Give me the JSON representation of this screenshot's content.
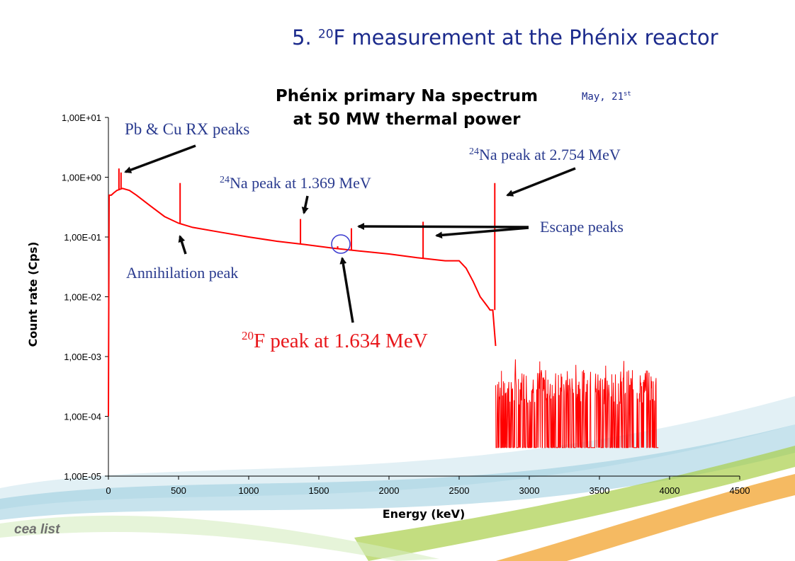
{
  "slide": {
    "title_prefix": "5. ",
    "title_sup": "20",
    "title_rest": "F measurement at the Phénix reactor",
    "date_main": "May, 21",
    "date_sup": "st",
    "logo_text": "cea list"
  },
  "colors": {
    "title": "#1b2a8c",
    "spectrum": "#ff0000",
    "arrows": "#0a0a0a",
    "annotation_blue": "#2a3b8f",
    "annotation_red": "#e8171b",
    "circle": "#3a3ad0"
  },
  "chart_data": {
    "type": "line",
    "title_line1": "Phénix primary Na spectrum",
    "title_line2": "at 50 MW thermal power",
    "xlabel": "Energy (keV)",
    "ylabel": "Count rate (Cps)",
    "xlim": [
      0,
      4500
    ],
    "ylim": [
      1e-05,
      10
    ],
    "yscale": "log",
    "grid": false,
    "legend": "none",
    "xticks": [
      "0",
      "500",
      "1000",
      "1500",
      "2000",
      "2500",
      "3000",
      "3500",
      "4000",
      "4500"
    ],
    "yticks": [
      "1,00E-05",
      "1,00E-04",
      "1,00E-03",
      "1,00E-02",
      "1,00E-01",
      "1,00E+00",
      "1,00E+01"
    ],
    "series": [
      {
        "color": "#ff0000",
        "continuum": {
          "x": [
            0,
            5,
            15,
            20,
            40,
            60,
            100,
            150,
            200,
            300,
            400,
            500,
            600,
            800,
            1000,
            1200,
            1400,
            1600,
            1800,
            2000,
            2200,
            2400,
            2500,
            2550,
            2600,
            2650,
            2700,
            2720,
            2740,
            2760
          ],
          "y": [
            0.0001,
            0.5,
            0.5,
            0.5,
            0.55,
            0.6,
            0.65,
            0.6,
            0.5,
            0.33,
            0.22,
            0.17,
            0.145,
            0.12,
            0.1,
            0.085,
            0.075,
            0.065,
            0.058,
            0.052,
            0.045,
            0.04,
            0.04,
            0.03,
            0.018,
            0.01,
            0.007,
            0.006,
            0.006,
            0.0015
          ]
        },
        "peaks": [
          {
            "x": 75,
            "y": 1.4
          },
          {
            "x": 90,
            "y": 1.2
          },
          {
            "x": 511,
            "y": 0.8
          },
          {
            "x": 1369,
            "y": 0.2
          },
          {
            "x": 1634,
            "y": 0.07
          },
          {
            "x": 1732,
            "y": 0.14
          },
          {
            "x": 2243,
            "y": 0.18
          },
          {
            "x": 2754,
            "y": 0.8
          }
        ],
        "tail": {
          "x_range": [
            2760,
            3920
          ],
          "y_range": [
            3e-05,
            0.0006
          ]
        }
      }
    ],
    "annotations": [
      {
        "text": "Pb & Cu RX peaks",
        "target": "75 keV"
      },
      {
        "sup": "24",
        "text": "Na peak at 1.369 MeV",
        "target": "1369 keV"
      },
      {
        "sup": "24",
        "text": "Na peak at 2.754 MeV",
        "target": "2754 keV"
      },
      {
        "text": "Escape peaks",
        "target": "1732 keV, 2243 keV"
      },
      {
        "text": "Annihilation peak",
        "target": "511 keV"
      },
      {
        "sup": "20",
        "text": "F peak at 1.634 MeV",
        "target": "1634 keV"
      }
    ]
  }
}
